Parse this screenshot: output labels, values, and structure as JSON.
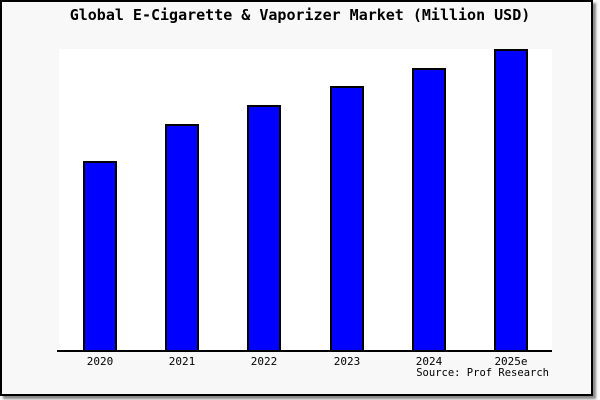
{
  "title": "Global E-Cigarette & Vaporizer Market (Million USD)",
  "source": "Source: Prof Research",
  "colors": {
    "bar_fill": "#0000FF",
    "bar_border": "#000000",
    "canvas_background": "#F8F8F8",
    "plot_background": "#FFFFFF",
    "axis": "#000000",
    "frame_border": "#000000"
  },
  "chart_data": {
    "type": "bar",
    "title": "Global E-Cigarette & Vaporizer Market (Million USD)",
    "categories": [
      "2020",
      "2021",
      "2022",
      "2023",
      "2024",
      "2025e"
    ],
    "values": [
      62.8,
      75.1,
      81.4,
      87.7,
      93.7,
      100
    ],
    "values_note": "Relative scale estimated from bar heights; y-axis has no tick labels in the image",
    "xlabel": "",
    "ylabel": "",
    "ylim": [
      0,
      100
    ],
    "grid": false,
    "legend": false,
    "y_axis_visible": false,
    "annotation": "Source: Prof Research"
  }
}
